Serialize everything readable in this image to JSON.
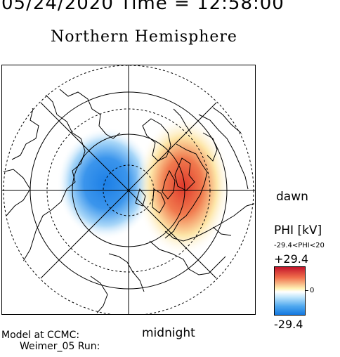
{
  "header": {
    "timestamp": "05/24/2020 Time = 12:58:00",
    "title": "Northern Hemisphere"
  },
  "plot": {
    "dawn_label": "dawn",
    "midnight_label": "midnight",
    "positive_cell_color": "#e23b2e",
    "negative_cell_color": "#1f86e8"
  },
  "colorbar": {
    "label": "PHI [kV]",
    "range_text": "-29.4<PHI<20",
    "max_label": "+29.4",
    "mid_label": "0",
    "min_label": "-29.4",
    "top_color": "#c4142a",
    "bottom_color": "#1478e0"
  },
  "footer": {
    "line1": "Model at CCMC:",
    "line2": "Weimer_05 Run:"
  }
}
